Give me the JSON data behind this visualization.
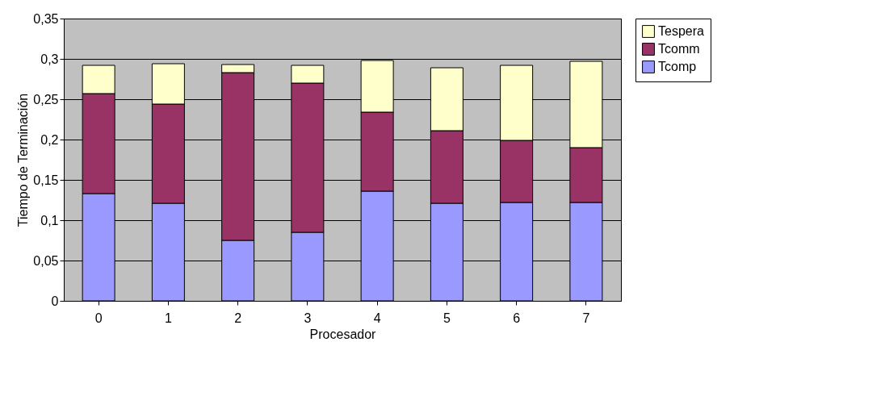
{
  "chart_data": {
    "type": "bar",
    "stacked": true,
    "xlabel": "Procesador",
    "ylabel": "Tiempo de Terminación",
    "categories": [
      "0",
      "1",
      "2",
      "3",
      "4",
      "5",
      "6",
      "7"
    ],
    "series": [
      {
        "name": "Tcomp",
        "color": "#9999ff",
        "values": [
          0.133,
          0.121,
          0.075,
          0.085,
          0.136,
          0.121,
          0.122,
          0.122
        ]
      },
      {
        "name": "Tcomm",
        "color": "#993366",
        "values": [
          0.124,
          0.123,
          0.208,
          0.185,
          0.098,
          0.09,
          0.077,
          0.068
        ]
      },
      {
        "name": "Tespera",
        "color": "#ffffcc",
        "values": [
          0.035,
          0.05,
          0.01,
          0.022,
          0.064,
          0.078,
          0.093,
          0.107
        ]
      }
    ],
    "ylim": [
      0,
      0.35
    ],
    "yticks": [
      {
        "value": 0,
        "label": "0"
      },
      {
        "value": 0.05,
        "label": "0,05"
      },
      {
        "value": 0.1,
        "label": "0,1"
      },
      {
        "value": 0.15,
        "label": "0,15"
      },
      {
        "value": 0.2,
        "label": "0,2"
      },
      {
        "value": 0.25,
        "label": "0,25"
      },
      {
        "value": 0.3,
        "label": "0,3"
      },
      {
        "value": 0.35,
        "label": "0,35"
      }
    ],
    "grid": "y",
    "legend": "right"
  }
}
